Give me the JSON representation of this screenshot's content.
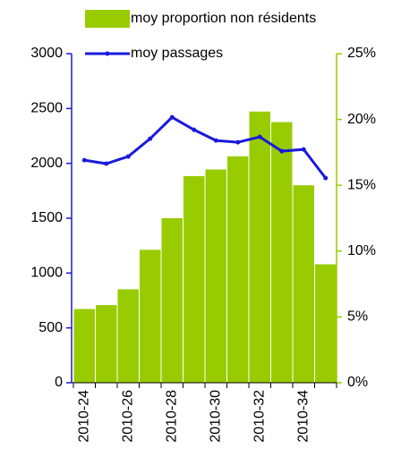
{
  "chart_data": {
    "type": "bar-line",
    "categories": [
      "2010-24",
      null,
      "2010-26",
      null,
      "2010-28",
      null,
      "2010-30",
      null,
      "2010-32",
      null,
      "2010-34",
      null
    ],
    "series": [
      {
        "name": "moy proportion non résidents",
        "type": "bar",
        "axis": "y2",
        "color": "#99cc00",
        "values": [
          5.6,
          5.9,
          7.1,
          10.1,
          12.5,
          15.7,
          16.2,
          17.2,
          20.6,
          19.8,
          15.0,
          9.0
        ]
      },
      {
        "name": "moy passages",
        "type": "line",
        "axis": "y",
        "color": "#1a1adb",
        "values": [
          2029,
          1997,
          2062,
          2225,
          2420,
          2306,
          2208,
          2192,
          2241,
          2111,
          2127,
          1866
        ]
      }
    ],
    "ylim": [
      0,
      3000
    ],
    "yticks": [
      0,
      500,
      1000,
      1500,
      2000,
      2500,
      3000
    ],
    "y2lim": [
      0,
      25
    ],
    "y2ticks": [
      {
        "value": 0,
        "label": "0%"
      },
      {
        "value": 5,
        "label": "5%"
      },
      {
        "value": 10,
        "label": "10%"
      },
      {
        "value": 15,
        "label": "15%"
      },
      {
        "value": 20,
        "label": "20%"
      },
      {
        "value": 25,
        "label": "25%"
      }
    ],
    "legend": "top"
  }
}
